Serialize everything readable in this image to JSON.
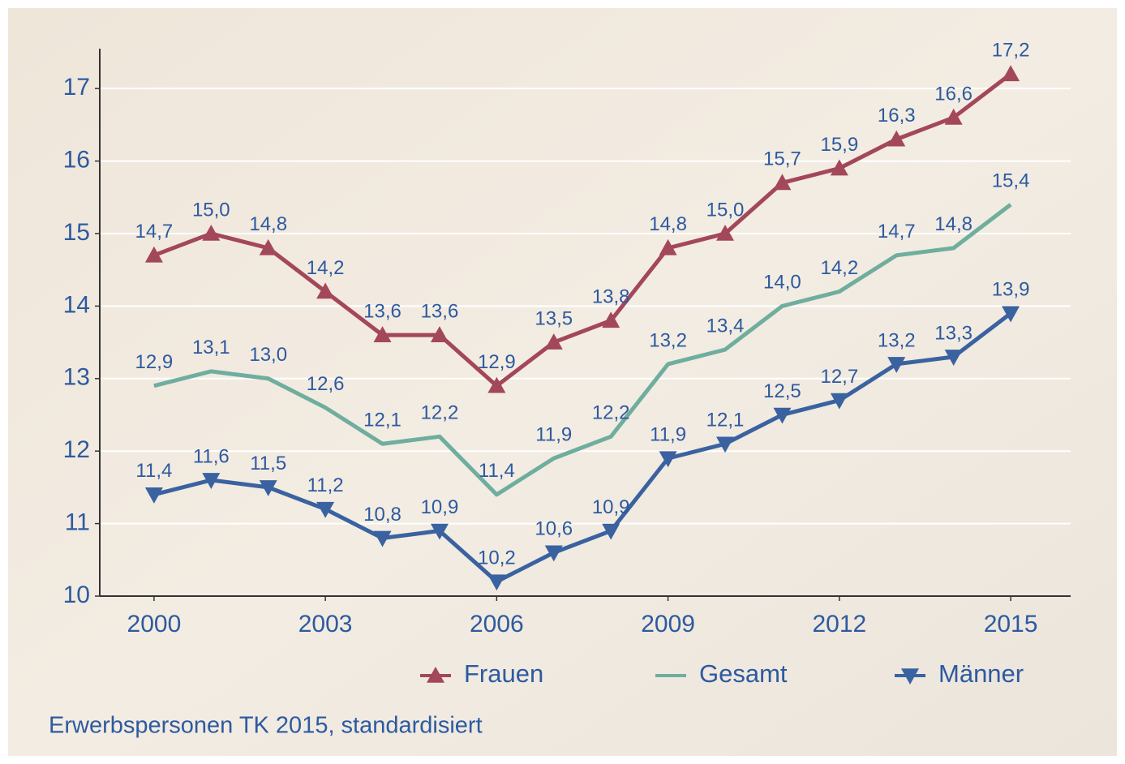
{
  "chart_data": {
    "type": "line",
    "note": "Erwerbspersonen TK 2015, standardisiert",
    "x": [
      2000,
      2001,
      2002,
      2003,
      2004,
      2005,
      2006,
      2007,
      2008,
      2009,
      2010,
      2011,
      2012,
      2013,
      2014,
      2015
    ],
    "xlim": [
      1999.05,
      2016.05
    ],
    "xticks": [
      2000,
      2003,
      2006,
      2009,
      2012,
      2015
    ],
    "ylim": [
      10,
      17.55
    ],
    "yticks": [
      10,
      11,
      12,
      13,
      14,
      15,
      16,
      17
    ],
    "grid": true,
    "legend": "bottom",
    "series": [
      {
        "name": "Frauen",
        "color": "#a3475a",
        "marker": "triangle-up",
        "values": [
          14.7,
          15.0,
          14.8,
          14.2,
          13.6,
          13.6,
          12.9,
          13.5,
          13.8,
          14.8,
          15.0,
          15.7,
          15.9,
          16.3,
          16.6,
          17.2
        ],
        "value_labels": [
          "14,7",
          "15,0",
          "14,8",
          "14,2",
          "13,6",
          "13,6",
          "12,9",
          "13,5",
          "13,8",
          "14,8",
          "15,0",
          "15,7",
          "15,9",
          "16,3",
          "16,6",
          "17,2"
        ]
      },
      {
        "name": "Gesamt",
        "color": "#6fae9e",
        "marker": "none",
        "values": [
          12.9,
          13.1,
          13.0,
          12.6,
          12.1,
          12.2,
          11.4,
          11.9,
          12.2,
          13.2,
          13.4,
          14.0,
          14.2,
          14.7,
          14.8,
          15.4
        ],
        "value_labels": [
          "12,9",
          "13,1",
          "13,0",
          "12,6",
          "12,1",
          "12,2",
          "11,4",
          "11,9",
          "12,2",
          "13,2",
          "13,4",
          "14,0",
          "14,2",
          "14,7",
          "14,8",
          "15,4"
        ]
      },
      {
        "name": "Männer",
        "color": "#3a62a0",
        "marker": "triangle-down",
        "values": [
          11.4,
          11.6,
          11.5,
          11.2,
          10.8,
          10.9,
          10.2,
          10.6,
          10.9,
          11.9,
          12.1,
          12.5,
          12.7,
          13.2,
          13.3,
          13.9
        ],
        "value_labels": [
          "11,4",
          "11,6",
          "11,5",
          "11,2",
          "10,8",
          "10,9",
          "10,2",
          "10,6",
          "10,9",
          "11,9",
          "12,1",
          "12,5",
          "12,7",
          "13,2",
          "13,3",
          "13,9"
        ]
      }
    ]
  }
}
